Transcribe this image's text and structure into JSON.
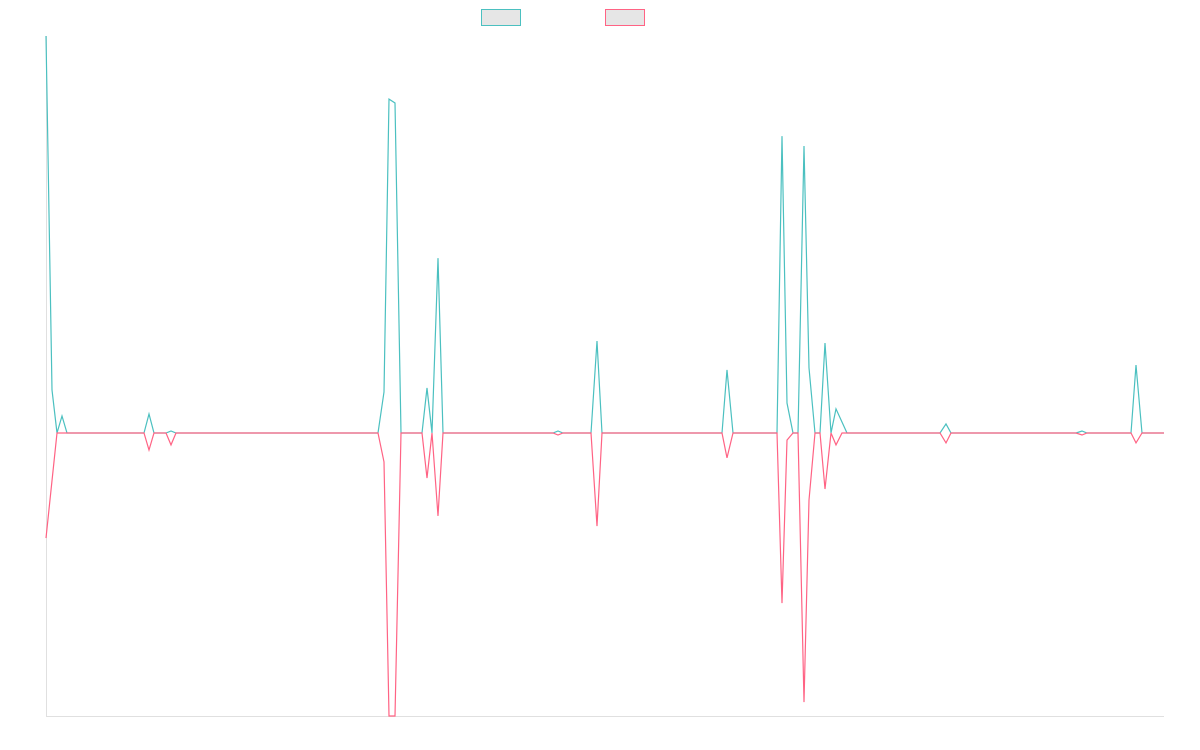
{
  "chart_data": {
    "type": "line",
    "xlim": [
      0,
      1118
    ],
    "ylim": [
      -1,
      1.4
    ],
    "series": [
      {
        "color": "#4bc0c0",
        "x": [
          0,
          6,
          11,
          16,
          21,
          98,
          103,
          108,
          120,
          125,
          130,
          332,
          338,
          343,
          349,
          355,
          376,
          381,
          386,
          392,
          397,
          507,
          512,
          517,
          545,
          551,
          556,
          676,
          681,
          687,
          731,
          736,
          741,
          747,
          752,
          758,
          763,
          769,
          774,
          779,
          785,
          790,
          801,
          894,
          900,
          905,
          1030,
          1036,
          1041,
          1085,
          1090,
          1096,
          1118
        ],
        "values": [
          1.403,
          0.152,
          0,
          0.06,
          0,
          0,
          0.067,
          0,
          0,
          0.007,
          0,
          0,
          0.145,
          1.18,
          1.166,
          0,
          0,
          0.159,
          0,
          0.618,
          0,
          0,
          0.007,
          0,
          0,
          0.325,
          0,
          0,
          0.223,
          0,
          0,
          1.049,
          0.106,
          0,
          0,
          1.014,
          0.23,
          0,
          0,
          0.318,
          0,
          0.085,
          0,
          0,
          0.032,
          0,
          0,
          0.007,
          0,
          0,
          0.24,
          0,
          0
        ]
      },
      {
        "color": "#ff6384",
        "x": [
          0,
          11,
          98,
          103,
          108,
          120,
          125,
          130,
          332,
          338,
          343,
          349,
          355,
          376,
          381,
          386,
          392,
          397,
          507,
          512,
          517,
          545,
          551,
          556,
          676,
          681,
          687,
          731,
          736,
          741,
          747,
          752,
          758,
          763,
          769,
          774,
          779,
          785,
          790,
          796,
          894,
          900,
          905,
          1030,
          1036,
          1041,
          1085,
          1090,
          1096,
          1118
        ],
        "values": [
          -0.371,
          0,
          0,
          -0.06,
          0,
          0,
          -0.042,
          0,
          0,
          -0.102,
          -1,
          -1,
          0,
          0,
          -0.159,
          0,
          -0.293,
          0,
          0,
          -0.007,
          0,
          0,
          -0.329,
          0,
          0,
          -0.088,
          0,
          0,
          -0.601,
          -0.025,
          0,
          0,
          -0.951,
          -0.237,
          0,
          0,
          -0.198,
          0,
          -0.042,
          0,
          0,
          -0.035,
          0,
          0,
          -0.007,
          0,
          0,
          -0.035,
          0,
          0
        ]
      }
    ]
  }
}
